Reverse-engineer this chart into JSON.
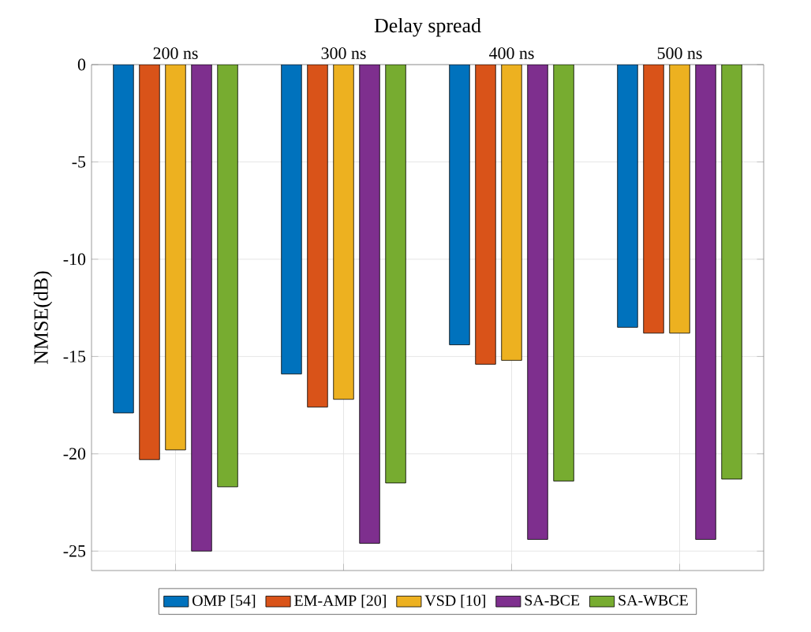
{
  "chart_data": {
    "type": "bar",
    "xlabel": "Delay spread",
    "ylabel": "NMSE(dB)",
    "categories": [
      "200 ns",
      "300 ns",
      "400 ns",
      "500 ns"
    ],
    "series": [
      {
        "name": "OMP [54]",
        "color": "#0072bd",
        "values": [
          -17.9,
          -15.9,
          -14.4,
          -13.5
        ]
      },
      {
        "name": "EM-AMP [20]",
        "color": "#d95319",
        "values": [
          -20.3,
          -17.6,
          -15.4,
          -13.8
        ]
      },
      {
        "name": "VSD [10]",
        "color": "#edb120",
        "values": [
          -19.8,
          -17.2,
          -15.2,
          -13.8
        ]
      },
      {
        "name": "SA-BCE",
        "color": "#7e2f8e",
        "values": [
          -25.0,
          -24.6,
          -24.4,
          -24.4
        ]
      },
      {
        "name": "SA-WBCE",
        "color": "#77ac30",
        "values": [
          -21.7,
          -21.5,
          -21.4,
          -21.3
        ]
      }
    ],
    "ylim": [
      -26,
      0
    ],
    "yticks": [
      -25,
      -20,
      -15,
      -10,
      -5,
      0
    ],
    "grid": true,
    "legend": "bottom"
  }
}
